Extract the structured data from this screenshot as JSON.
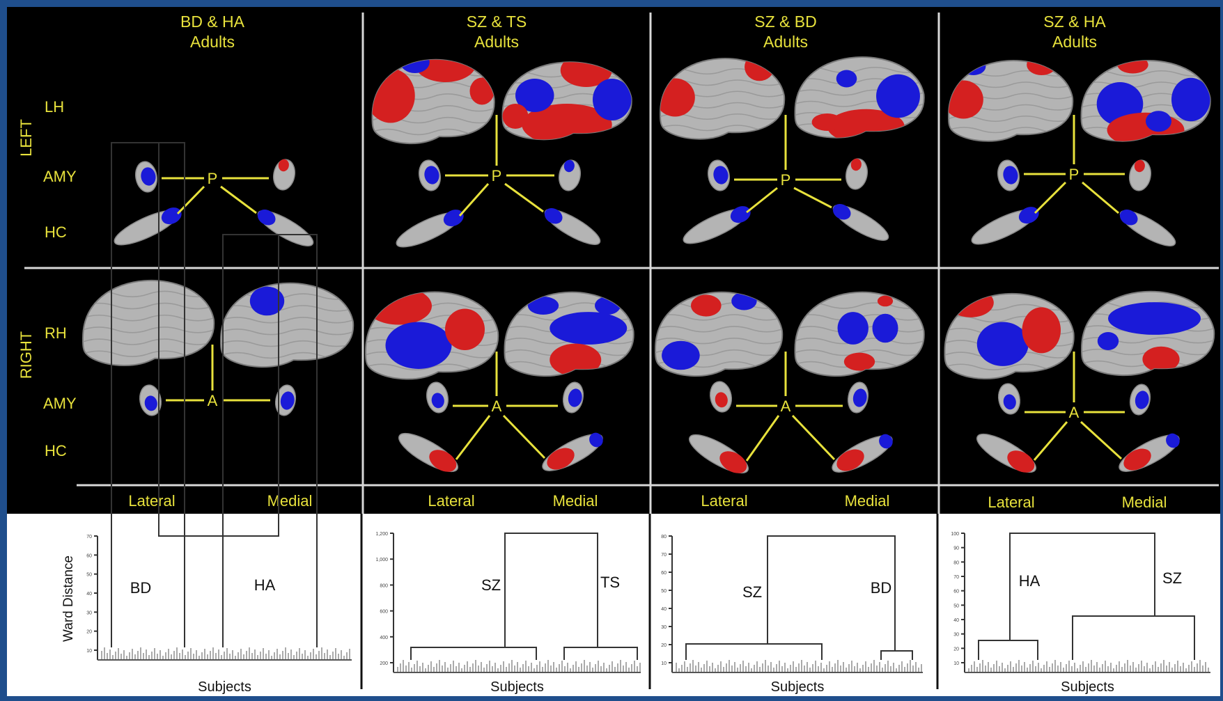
{
  "columns": [
    {
      "title": "BD & HA",
      "subtitle": "Adults"
    },
    {
      "title": "SZ & TS",
      "subtitle": "Adults"
    },
    {
      "title": "SZ & BD",
      "subtitle": "Adults"
    },
    {
      "title": "SZ & HA",
      "subtitle": "Adults"
    }
  ],
  "side_labels": {
    "left": "LEFT",
    "right": "RIGHT",
    "lh": "LH",
    "rh": "RH",
    "amy": "AMY",
    "hc": "HC"
  },
  "hub_labels": {
    "left": "P",
    "right": "A"
  },
  "view_labels": {
    "lateral": "Lateral",
    "medial": "Medial"
  },
  "dendrograms": {
    "ylabel": "Ward Distance",
    "xlabel": "Subjects",
    "panels": [
      {
        "left_group": "BD",
        "right_group": "HA",
        "ticks": [
          "70",
          "60",
          "50",
          "40",
          "30",
          "20",
          "10"
        ]
      },
      {
        "left_group": "SZ",
        "right_group": "TS",
        "ticks": [
          "1,200",
          "1,000",
          "800",
          "600",
          "400",
          "200"
        ]
      },
      {
        "left_group": "SZ",
        "right_group": "BD",
        "ticks": [
          "80",
          "70",
          "60",
          "50",
          "40",
          "30",
          "20",
          "10"
        ]
      },
      {
        "left_group": "HA",
        "right_group": "SZ",
        "ticks": [
          "100",
          "90",
          "80",
          "70",
          "60",
          "50",
          "40",
          "30",
          "20",
          "10"
        ]
      }
    ]
  },
  "colors": {
    "border": "#1f4e8c",
    "panel": "#000000",
    "label": "#e8e23c",
    "increase": "#d42020",
    "decrease": "#1a1ad8",
    "surface": "#b4b4b4"
  }
}
